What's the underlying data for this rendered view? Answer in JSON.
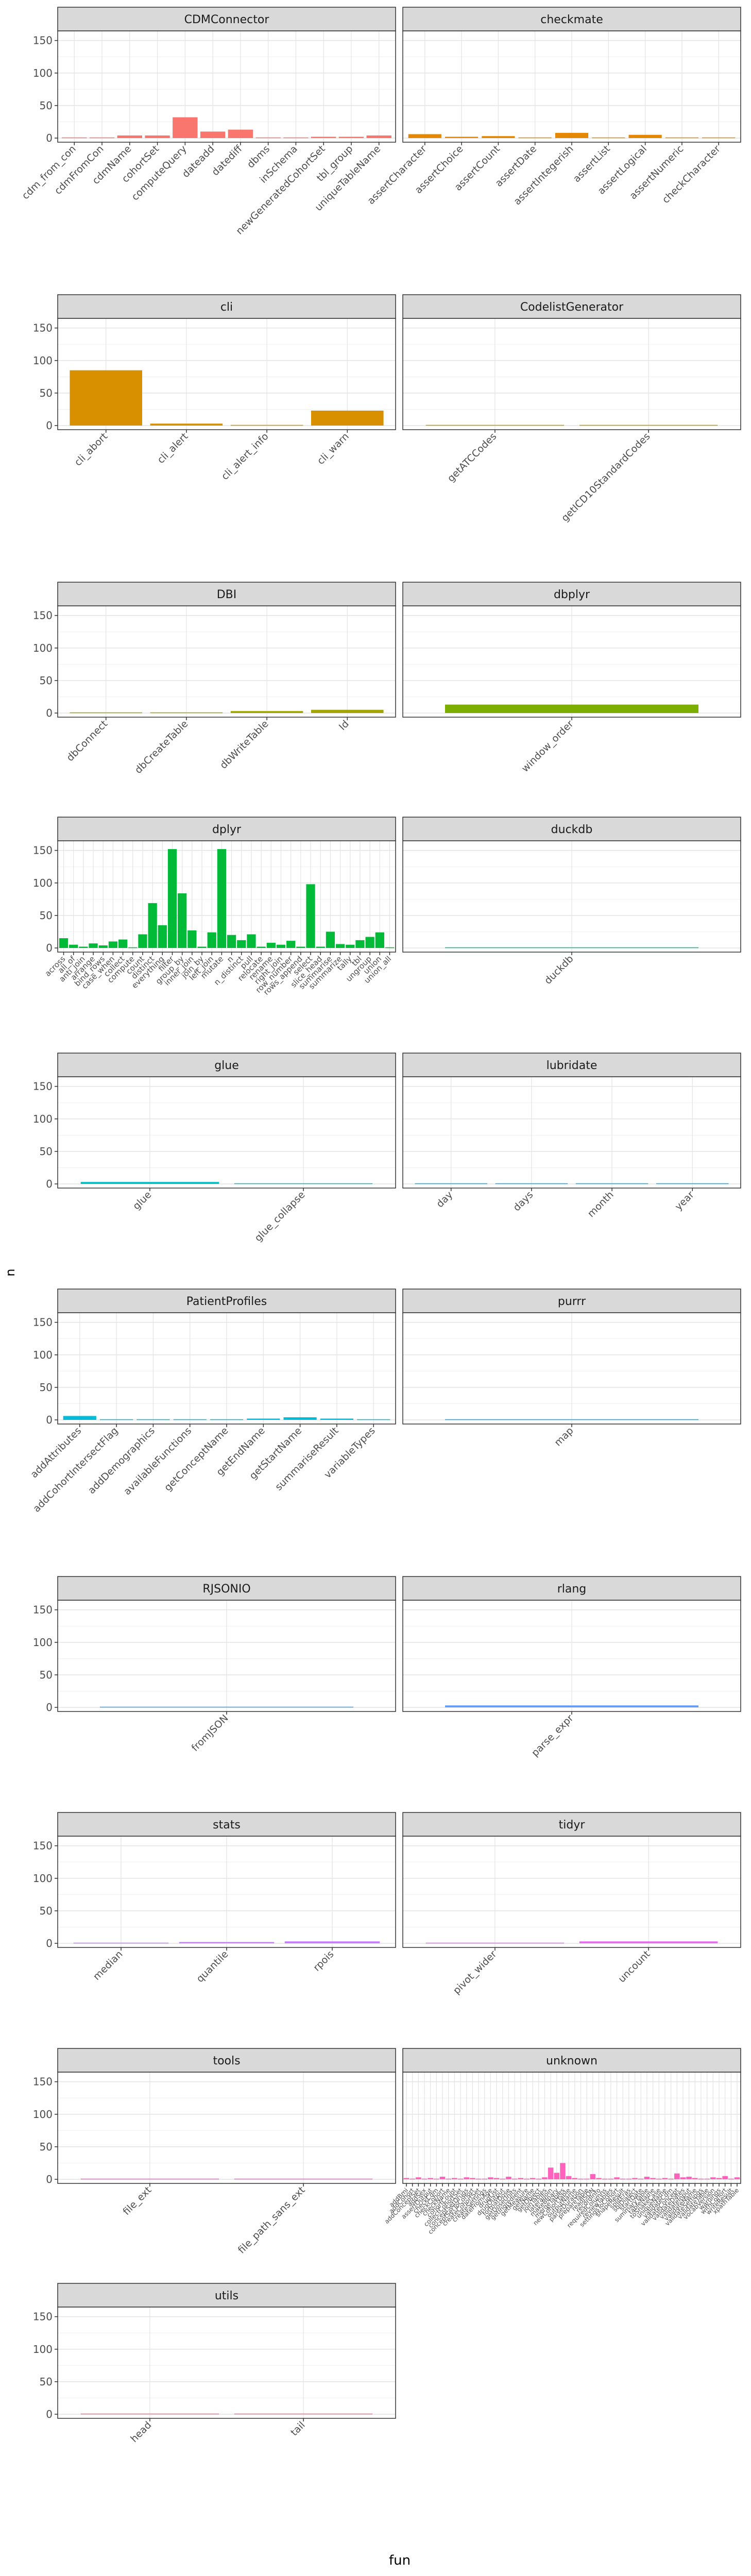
{
  "figure": {
    "ylabel": "n",
    "xlabel": "fun",
    "facet_strip_fill": "#d9d9d9",
    "axis_text_color": "#4d4d4d"
  },
  "chart_data": [
    {
      "type": "bar",
      "title": "CDMConnector",
      "color": "#f8766d",
      "ylim": [
        0,
        160
      ],
      "yticks": [
        0,
        50,
        100,
        150
      ],
      "categories": [
        "cdm_from_con",
        "cdmFromCon",
        "cdmName",
        "cohortSet",
        "computeQuery",
        "dateadd",
        "datediff",
        "dbms",
        "inSchema",
        "newGeneratedCohortSet",
        "tbl_group",
        "uniqueTableName"
      ],
      "values": [
        1,
        1,
        4,
        4,
        32,
        10,
        13,
        1,
        1,
        2,
        2,
        4
      ]
    },
    {
      "type": "bar",
      "title": "checkmate",
      "color": "#e58700",
      "ylim": [
        0,
        160
      ],
      "yticks": [
        0,
        50,
        100,
        150
      ],
      "categories": [
        "assertCharacter",
        "assertChoice",
        "assertCount",
        "assertDate",
        "assertIntegerish",
        "assertList",
        "assertLogical",
        "assertNumeric",
        "checkCharacter"
      ],
      "values": [
        6,
        2,
        3,
        1,
        8,
        1,
        5,
        1,
        1
      ]
    },
    {
      "type": "bar",
      "title": "cli",
      "color": "#d89000",
      "ylim": [
        0,
        160
      ],
      "yticks": [
        0,
        50,
        100,
        150
      ],
      "categories": [
        "cli_abort",
        "cli_alert",
        "cli_alert_info",
        "cli_warn"
      ],
      "values": [
        85,
        3,
        1,
        23
      ]
    },
    {
      "type": "bar",
      "title": "CodelistGenerator",
      "color": "#c09b00",
      "ylim": [
        0,
        160
      ],
      "yticks": [
        0,
        50,
        100,
        150
      ],
      "categories": [
        "getATCCodes",
        "getICD10StandardCodes"
      ],
      "values": [
        1,
        1
      ]
    },
    {
      "type": "bar",
      "title": "DBI",
      "color": "#a3a500",
      "ylim": [
        0,
        160
      ],
      "yticks": [
        0,
        50,
        100,
        150
      ],
      "categories": [
        "dbConnect",
        "dbCreateTable",
        "dbWriteTable",
        "Id"
      ],
      "values": [
        1,
        1,
        3,
        5
      ]
    },
    {
      "type": "bar",
      "title": "dbplyr",
      "color": "#7cae00",
      "ylim": [
        0,
        160
      ],
      "yticks": [
        0,
        50,
        100,
        150
      ],
      "categories": [
        "window_order"
      ],
      "values": [
        13
      ]
    },
    {
      "type": "bar",
      "title": "dplyr",
      "color": "#00ba38",
      "ylim": [
        0,
        160
      ],
      "yticks": [
        0,
        50,
        100,
        150
      ],
      "categories": [
        "across",
        "all_of",
        "anti_join",
        "arrange",
        "bind_rows",
        "case_when",
        "collect",
        "compute",
        "count",
        "distinct",
        "everything",
        "filter",
        "group_by",
        "inner_join",
        "join_by",
        "left_join",
        "mutate",
        "n",
        "n_distinct",
        "pull",
        "relocate",
        "rename",
        "right_join",
        "row_number",
        "rows_append",
        "select",
        "slice_head",
        "summarise",
        "summarize",
        "tally",
        "tbl",
        "ungroup",
        "union",
        "union_all"
      ],
      "values": [
        15,
        5,
        2,
        7,
        4,
        10,
        13,
        1,
        21,
        69,
        35,
        152,
        84,
        27,
        2,
        24,
        152,
        20,
        12,
        21,
        2,
        8,
        5,
        11,
        2,
        98,
        2,
        25,
        6,
        5,
        12,
        17,
        24,
        1
      ]
    },
    {
      "type": "bar",
      "title": "duckdb",
      "color": "#00c08b",
      "ylim": [
        0,
        160
      ],
      "yticks": [
        0,
        50,
        100,
        150
      ],
      "categories": [
        "duckdb"
      ],
      "values": [
        1
      ]
    },
    {
      "type": "bar",
      "title": "glue",
      "color": "#00bfc4",
      "ylim": [
        0,
        160
      ],
      "yticks": [
        0,
        50,
        100,
        150
      ],
      "categories": [
        "glue",
        "glue_collapse"
      ],
      "values": [
        3,
        1
      ]
    },
    {
      "type": "bar",
      "title": "lubridate",
      "color": "#00b4f0",
      "ylim": [
        0,
        160
      ],
      "yticks": [
        0,
        50,
        100,
        150
      ],
      "categories": [
        "day",
        "days",
        "month",
        "year"
      ],
      "values": [
        1,
        1,
        1,
        1
      ]
    },
    {
      "type": "bar",
      "title": "PatientProfiles",
      "color": "#00bcd8",
      "ylim": [
        0,
        160
      ],
      "yticks": [
        0,
        50,
        100,
        150
      ],
      "categories": [
        "addAttributes",
        "addCohortIntersectFlag",
        "addDemographics",
        "availableFunctions",
        "getConceptName",
        "getEndName",
        "getStartName",
        "summariseResult",
        "variableTypes"
      ],
      "values": [
        6,
        1,
        1,
        1,
        1,
        2,
        4,
        2,
        1
      ]
    },
    {
      "type": "bar",
      "title": "purrr",
      "color": "#00b0f6",
      "ylim": [
        0,
        160
      ],
      "yticks": [
        0,
        50,
        100,
        150
      ],
      "categories": [
        "map"
      ],
      "values": [
        1
      ]
    },
    {
      "type": "bar",
      "title": "RJSONIO",
      "color": "#35a2ff",
      "ylim": [
        0,
        160
      ],
      "yticks": [
        0,
        50,
        100,
        150
      ],
      "categories": [
        "fromJSON"
      ],
      "values": [
        1
      ]
    },
    {
      "type": "bar",
      "title": "rlang",
      "color": "#619cff",
      "ylim": [
        0,
        160
      ],
      "yticks": [
        0,
        50,
        100,
        150
      ],
      "categories": [
        "parse_expr"
      ],
      "values": [
        3
      ]
    },
    {
      "type": "bar",
      "title": "stats",
      "color": "#c77cff",
      "ylim": [
        0,
        160
      ],
      "yticks": [
        0,
        50,
        100,
        150
      ],
      "categories": [
        "median",
        "quantile",
        "rpois"
      ],
      "values": [
        1,
        2,
        3
      ]
    },
    {
      "type": "bar",
      "title": "tidyr",
      "color": "#e76bf3",
      "ylim": [
        0,
        160
      ],
      "yticks": [
        0,
        50,
        100,
        150
      ],
      "categories": [
        "pivot_wider",
        "uncount"
      ],
      "values": [
        1,
        3
      ]
    },
    {
      "type": "bar",
      "title": "tools",
      "color": "#fd61d1",
      "ylim": [
        0,
        160
      ],
      "yticks": [
        0,
        50,
        100,
        150
      ],
      "categories": [
        "file_ext",
        "file_path_sans_ext"
      ],
      "values": [
        1,
        1
      ]
    },
    {
      "type": "bar",
      "title": "unknown",
      "color": "#ff62bc",
      "ylim": [
        0,
        160
      ],
      "yticks": [
        0,
        50,
        100,
        150
      ],
      "categories": [
        "addBmi",
        "addCohort",
        "addConceptSet",
        "addSex",
        "assertOutput",
        "checkCdm",
        "checkCohort",
        "checkName",
        "cohortCount",
        "collectCohortSet",
        "conceptSetDrugs",
        "conceptSetToCohort",
        "createCohortSet",
        "createSettings",
        "dateFromAge",
        "drugList",
        "drugOutput",
        "formatDose",
        "getDoseUnits",
        "getIngredient",
        "getMeasure",
        "getName",
        "getObject",
        "joinTables",
        "lateralJoin",
        "makeBinary",
        "mergeTables",
        "newCohortTable",
        "outputName",
        "parseDuration",
        "prepareTable",
        "readJSON",
        "recordInfo",
        "requiredColumns",
        "reviewTables",
        "settingsToCohort",
        "shapeResult",
        "splitEras",
        "sqlDialect",
        "startDate",
        "summaryTable",
        "tableName",
        "toSnakeCase",
        "uniqueName",
        "validateCdm",
        "validateConcept",
        "validateDates",
        "validateInput",
        "validateName",
        "validateSettings",
        "validateTable",
        "vocabVersion",
        "warnings",
        "withCohort",
        "writeResult",
        "xpathTable"
      ],
      "values": [
        2,
        1,
        3,
        1,
        2,
        1,
        4,
        1,
        2,
        1,
        3,
        2,
        1,
        1,
        3,
        2,
        1,
        4,
        1,
        2,
        1,
        2,
        1,
        3,
        18,
        10,
        25,
        5,
        2,
        1,
        1,
        8,
        2,
        1,
        1,
        3,
        1,
        1,
        2,
        1,
        4,
        2,
        1,
        2,
        1,
        9,
        3,
        4,
        2,
        1,
        1,
        3,
        2,
        5,
        1,
        3
      ]
    },
    {
      "type": "bar",
      "title": "utils",
      "color": "#ff6c91",
      "ylim": [
        0,
        160
      ],
      "yticks": [
        0,
        50,
        100,
        150
      ],
      "categories": [
        "head",
        "tail"
      ],
      "values": [
        1,
        1
      ]
    }
  ]
}
